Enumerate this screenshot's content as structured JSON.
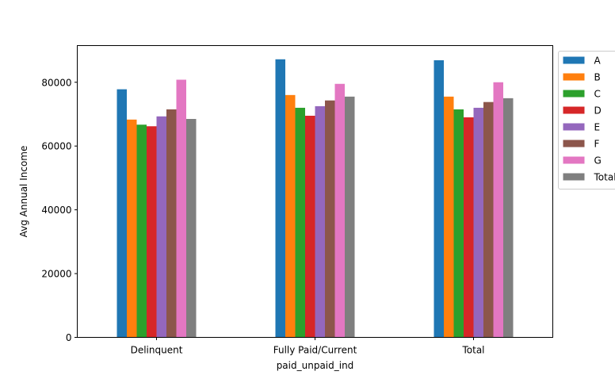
{
  "chart_data": {
    "type": "bar",
    "title": "",
    "xlabel": "paid_unpaid_ind",
    "ylabel": "Avg Annual Income",
    "categories": [
      "Delinquent",
      "Fully Paid/Current",
      "Total"
    ],
    "ylim": [
      0,
      91500
    ],
    "yticks": [
      0,
      20000,
      40000,
      60000,
      80000
    ],
    "grid": false,
    "legend_position": "outside-top-right",
    "series": [
      {
        "name": "A",
        "color": "#1f77b4",
        "values": [
          77800,
          87200,
          86900
        ]
      },
      {
        "name": "B",
        "color": "#ff7f0e",
        "values": [
          68300,
          76000,
          75500
        ]
      },
      {
        "name": "C",
        "color": "#2ca02c",
        "values": [
          66700,
          72000,
          71500
        ]
      },
      {
        "name": "D",
        "color": "#d62728",
        "values": [
          66200,
          69500,
          69000
        ]
      },
      {
        "name": "E",
        "color": "#9467bd",
        "values": [
          69300,
          72500,
          72000
        ]
      },
      {
        "name": "F",
        "color": "#8c564b",
        "values": [
          71500,
          74300,
          73800
        ]
      },
      {
        "name": "G",
        "color": "#e377c2",
        "values": [
          80800,
          79500,
          80000
        ]
      },
      {
        "name": "Total",
        "color": "#7f7f7f",
        "values": [
          68500,
          75500,
          75000
        ]
      }
    ]
  }
}
